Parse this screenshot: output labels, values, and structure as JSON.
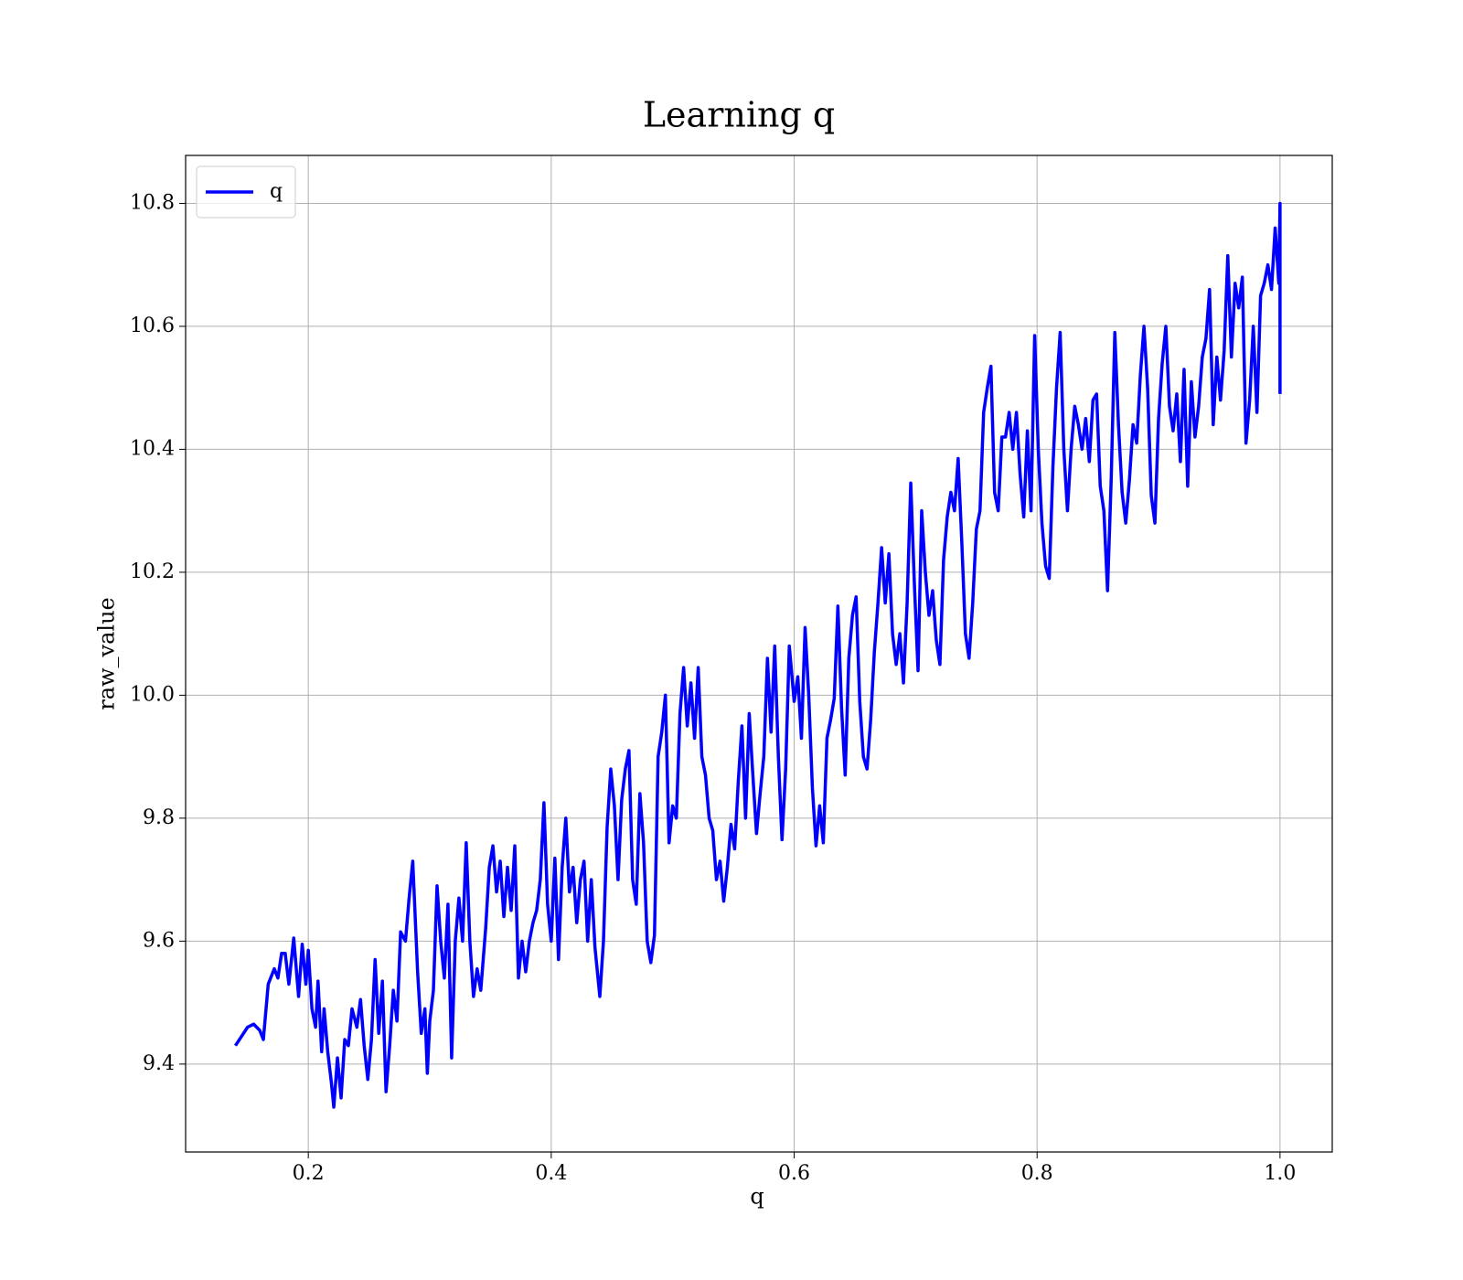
{
  "chart_data": {
    "type": "line",
    "title": "Learning q",
    "xlabel": "q",
    "ylabel": "raw_value",
    "x": [
      0.14,
      0.15,
      0.155,
      0.16,
      0.163,
      0.167,
      0.172,
      0.175,
      0.178,
      0.181,
      0.184,
      0.188,
      0.192,
      0.195,
      0.198,
      0.2,
      0.203,
      0.206,
      0.208,
      0.211,
      0.213,
      0.216,
      0.219,
      0.221,
      0.224,
      0.227,
      0.23,
      0.233,
      0.236,
      0.24,
      0.243,
      0.246,
      0.249,
      0.252,
      0.255,
      0.258,
      0.261,
      0.264,
      0.267,
      0.27,
      0.273,
      0.276,
      0.28,
      0.283,
      0.286,
      0.29,
      0.293,
      0.296,
      0.298,
      0.3,
      0.303,
      0.306,
      0.309,
      0.312,
      0.315,
      0.318,
      0.321,
      0.324,
      0.327,
      0.33,
      0.333,
      0.336,
      0.339,
      0.342,
      0.346,
      0.349,
      0.352,
      0.355,
      0.358,
      0.361,
      0.364,
      0.367,
      0.37,
      0.373,
      0.376,
      0.379,
      0.382,
      0.385,
      0.388,
      0.391,
      0.394,
      0.397,
      0.4,
      0.403,
      0.406,
      0.409,
      0.412,
      0.415,
      0.418,
      0.421,
      0.424,
      0.427,
      0.43,
      0.433,
      0.436,
      0.44,
      0.443,
      0.446,
      0.449,
      0.452,
      0.455,
      0.458,
      0.461,
      0.464,
      0.467,
      0.47,
      0.473,
      0.476,
      0.479,
      0.482,
      0.485,
      0.488,
      0.491,
      0.494,
      0.497,
      0.5,
      0.503,
      0.506,
      0.509,
      0.512,
      0.515,
      0.518,
      0.521,
      0.524,
      0.527,
      0.53,
      0.533,
      0.536,
      0.539,
      0.542,
      0.545,
      0.548,
      0.551,
      0.554,
      0.557,
      0.56,
      0.563,
      0.566,
      0.569,
      0.572,
      0.575,
      0.578,
      0.581,
      0.584,
      0.587,
      0.59,
      0.593,
      0.596,
      0.6,
      0.603,
      0.606,
      0.609,
      0.612,
      0.615,
      0.618,
      0.621,
      0.624,
      0.627,
      0.63,
      0.633,
      0.636,
      0.639,
      0.642,
      0.645,
      0.648,
      0.651,
      0.654,
      0.657,
      0.66,
      0.663,
      0.666,
      0.669,
      0.672,
      0.675,
      0.678,
      0.681,
      0.684,
      0.687,
      0.69,
      0.693,
      0.696,
      0.699,
      0.702,
      0.705,
      0.708,
      0.711,
      0.714,
      0.717,
      0.72,
      0.723,
      0.726,
      0.729,
      0.732,
      0.735,
      0.738,
      0.741,
      0.744,
      0.747,
      0.75,
      0.753,
      0.756,
      0.759,
      0.762,
      0.765,
      0.768,
      0.771,
      0.774,
      0.777,
      0.78,
      0.783,
      0.786,
      0.789,
      0.792,
      0.795,
      0.798,
      0.801,
      0.804,
      0.807,
      0.81,
      0.813,
      0.816,
      0.819,
      0.822,
      0.825,
      0.828,
      0.831,
      0.834,
      0.837,
      0.84,
      0.843,
      0.846,
      0.849,
      0.852,
      0.855,
      0.858,
      0.861,
      0.864,
      0.867,
      0.87,
      0.873,
      0.876,
      0.879,
      0.882,
      0.885,
      0.888,
      0.891,
      0.894,
      0.897,
      0.9,
      0.903,
      0.906,
      0.909,
      0.912,
      0.915,
      0.918,
      0.921,
      0.924,
      0.927,
      0.93,
      0.933,
      0.936,
      0.939,
      0.942,
      0.945,
      0.948,
      0.951,
      0.954,
      0.957,
      0.96,
      0.963,
      0.966,
      0.969,
      0.972,
      0.975,
      0.978,
      0.981,
      0.984,
      0.987,
      0.99,
      0.993,
      0.996,
      0.999,
      1.0,
      1.0
    ],
    "series": [
      {
        "name": "q",
        "color": "#0000ff",
        "values": [
          9.43,
          9.46,
          9.465,
          9.455,
          9.44,
          9.53,
          9.555,
          9.54,
          9.58,
          9.58,
          9.53,
          9.605,
          9.51,
          9.595,
          9.53,
          9.585,
          9.49,
          9.46,
          9.535,
          9.42,
          9.49,
          9.42,
          9.37,
          9.33,
          9.41,
          9.345,
          9.44,
          9.43,
          9.49,
          9.46,
          9.505,
          9.43,
          9.375,
          9.44,
          9.57,
          9.45,
          9.535,
          9.355,
          9.43,
          9.52,
          9.47,
          9.615,
          9.6,
          9.67,
          9.73,
          9.55,
          9.45,
          9.49,
          9.385,
          9.47,
          9.52,
          9.69,
          9.6,
          9.54,
          9.66,
          9.41,
          9.6,
          9.67,
          9.6,
          9.76,
          9.6,
          9.51,
          9.555,
          9.52,
          9.62,
          9.72,
          9.755,
          9.68,
          9.73,
          9.64,
          9.72,
          9.65,
          9.755,
          9.54,
          9.6,
          9.55,
          9.6,
          9.63,
          9.65,
          9.7,
          9.825,
          9.66,
          9.6,
          9.735,
          9.57,
          9.72,
          9.8,
          9.68,
          9.72,
          9.63,
          9.7,
          9.73,
          9.6,
          9.7,
          9.59,
          9.51,
          9.6,
          9.785,
          9.88,
          9.82,
          9.7,
          9.83,
          9.88,
          9.91,
          9.7,
          9.66,
          9.84,
          9.76,
          9.6,
          9.565,
          9.61,
          9.9,
          9.94,
          10.0,
          9.76,
          9.82,
          9.8,
          9.97,
          10.045,
          9.95,
          10.02,
          9.93,
          10.045,
          9.9,
          9.87,
          9.8,
          9.78,
          9.7,
          9.73,
          9.665,
          9.72,
          9.79,
          9.75,
          9.86,
          9.95,
          9.8,
          9.97,
          9.87,
          9.775,
          9.84,
          9.9,
          10.06,
          9.94,
          10.08,
          9.9,
          9.765,
          9.88,
          10.08,
          9.99,
          10.03,
          9.93,
          10.11,
          10.0,
          9.85,
          9.755,
          9.82,
          9.76,
          9.93,
          9.96,
          9.995,
          10.145,
          9.98,
          9.87,
          10.06,
          10.13,
          10.16,
          9.99,
          9.9,
          9.88,
          9.96,
          10.07,
          10.15,
          10.24,
          10.15,
          10.23,
          10.1,
          10.05,
          10.1,
          10.02,
          10.15,
          10.345,
          10.18,
          10.04,
          10.3,
          10.2,
          10.13,
          10.17,
          10.09,
          10.05,
          10.22,
          10.29,
          10.33,
          10.3,
          10.385,
          10.25,
          10.1,
          10.06,
          10.15,
          10.27,
          10.3,
          10.46,
          10.5,
          10.535,
          10.33,
          10.3,
          10.42,
          10.42,
          10.46,
          10.4,
          10.46,
          10.36,
          10.29,
          10.43,
          10.3,
          10.585,
          10.4,
          10.28,
          10.21,
          10.19,
          10.37,
          10.5,
          10.59,
          10.4,
          10.3,
          10.4,
          10.47,
          10.44,
          10.4,
          10.45,
          10.38,
          10.48,
          10.49,
          10.34,
          10.3,
          10.17,
          10.35,
          10.59,
          10.44,
          10.33,
          10.28,
          10.35,
          10.44,
          10.41,
          10.52,
          10.6,
          10.5,
          10.325,
          10.28,
          10.45,
          10.54,
          10.6,
          10.47,
          10.43,
          10.49,
          10.38,
          10.53,
          10.34,
          10.51,
          10.42,
          10.47,
          10.55,
          10.58,
          10.66,
          10.44,
          10.55,
          10.48,
          10.56,
          10.715,
          10.55,
          10.67,
          10.63,
          10.68,
          10.41,
          10.48,
          10.6,
          10.46,
          10.65,
          10.67,
          10.7,
          10.66,
          10.76,
          10.67,
          10.8,
          10.49
        ]
      }
    ],
    "xlim": [
      0.099,
      1.043
    ],
    "ylim": [
      9.257,
      10.878
    ],
    "xticks": [
      0.2,
      0.4,
      0.6,
      0.8,
      {
        "value": 1,
        "label": "1.0"
      }
    ],
    "yticks": [
      9.4,
      9.6,
      9.8,
      {
        "value": 10,
        "label": "10.0"
      },
      10.2,
      10.4,
      10.6,
      10.8
    ],
    "grid": true,
    "legend": "upper left"
  }
}
